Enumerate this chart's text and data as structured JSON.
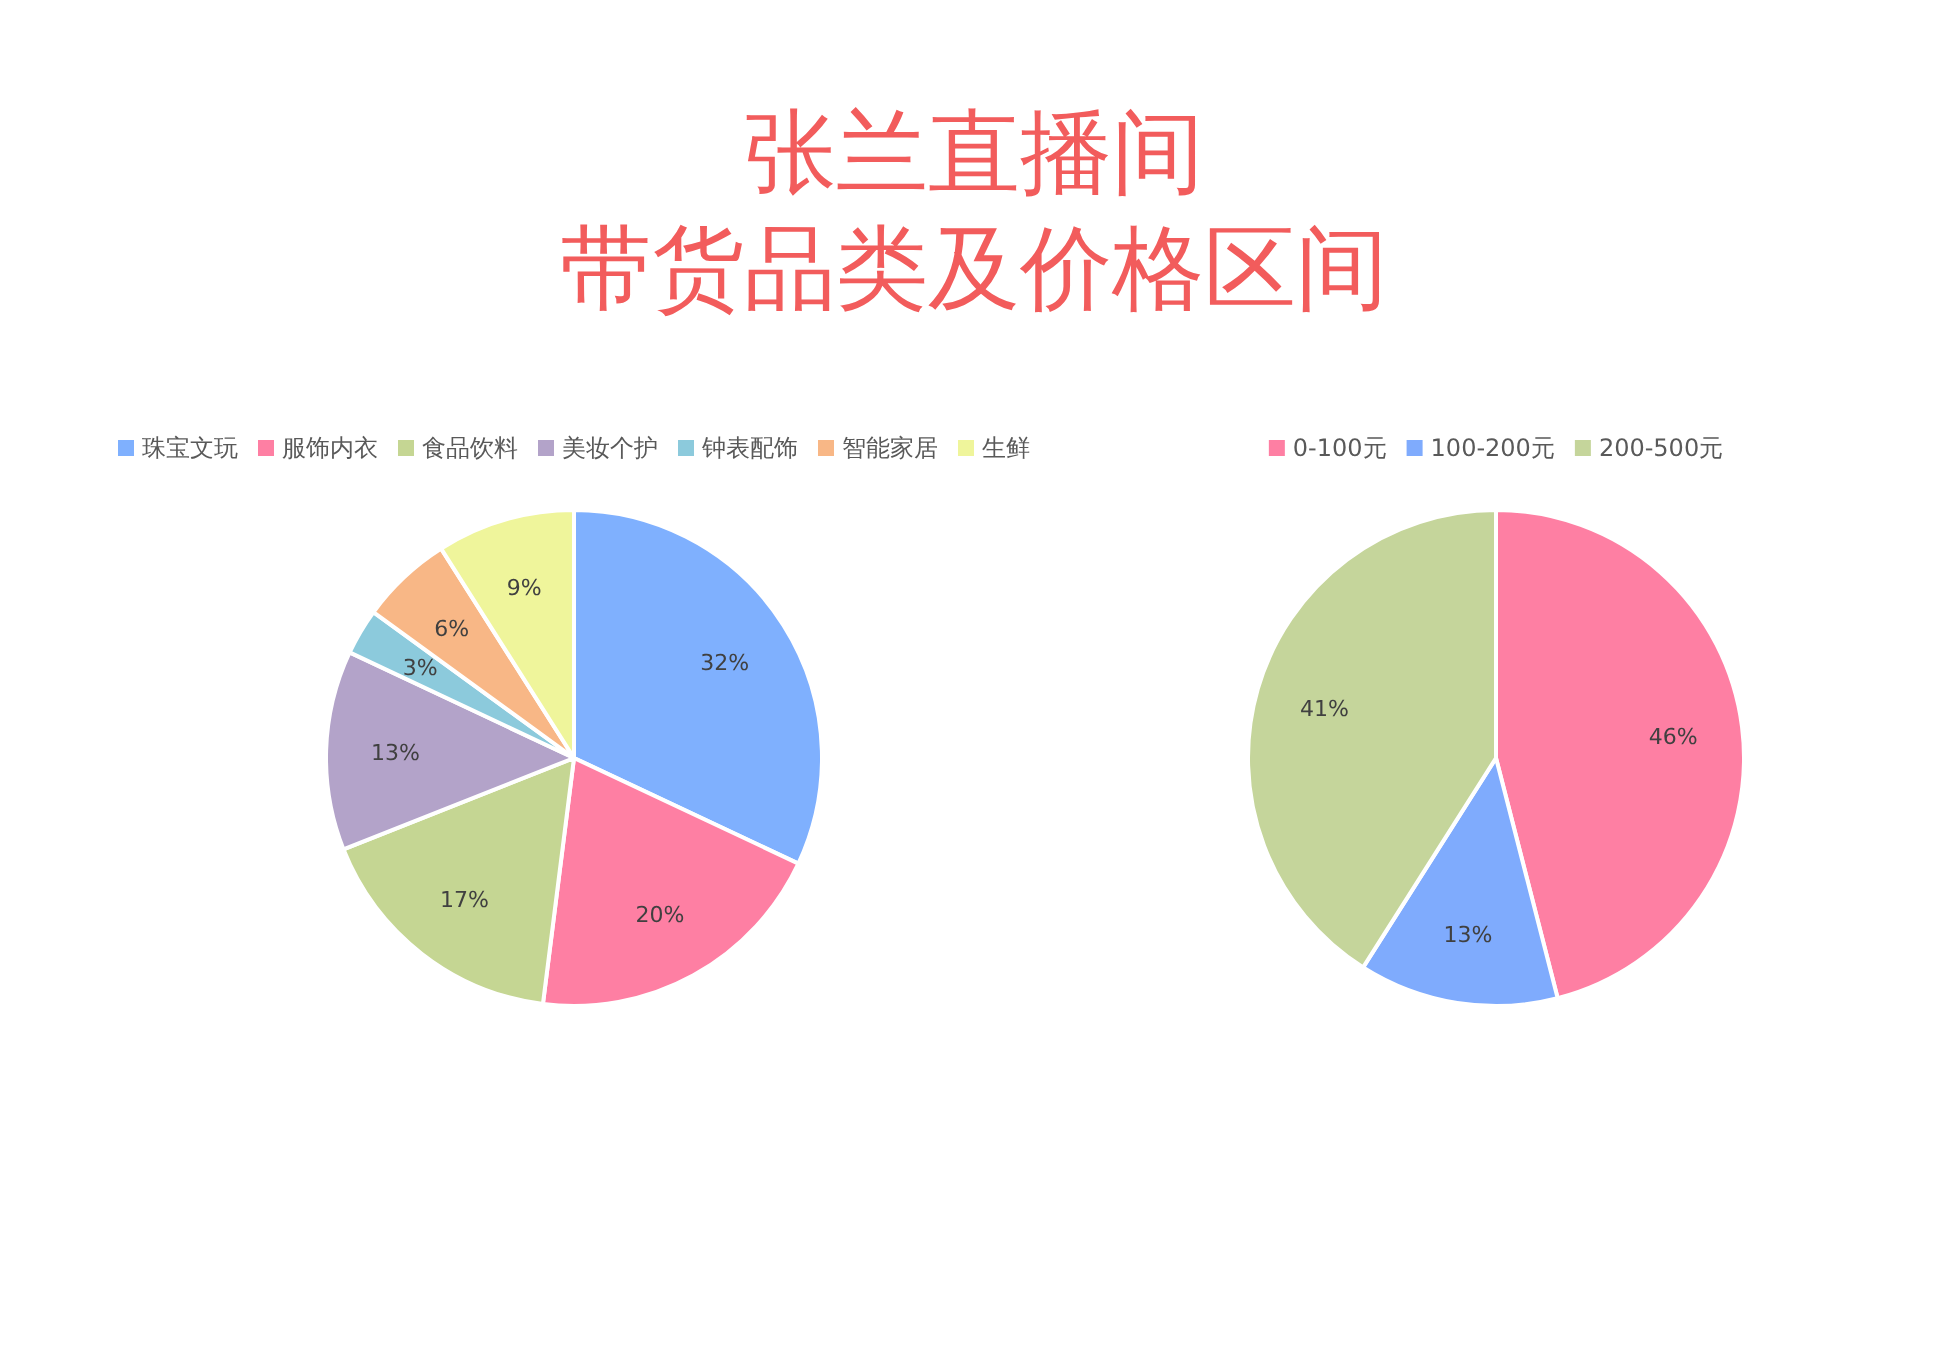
{
  "chart_data": [
    {
      "type": "pie",
      "title": "张兰直播间",
      "subtitle": "带货品类及价格区间",
      "categories": [
        "珠宝文玩",
        "服饰内衣",
        "食品饮料",
        "美妆个护",
        "钟表配饰",
        "智能家居",
        "生鲜"
      ],
      "values": [
        32,
        20,
        17,
        13,
        3,
        6,
        9
      ],
      "value_labels": [
        "32%",
        "20%",
        "17%",
        "13%",
        "3%",
        "6%",
        "9%"
      ],
      "colors": [
        "#7fb0fe",
        "#fe7fa3",
        "#c5d693",
        "#b3a3c9",
        "#8ccadc",
        "#f8b786",
        "#eff59b"
      ],
      "legend": "top"
    },
    {
      "type": "pie",
      "categories": [
        "0-100元",
        "100-200元",
        "200-500元"
      ],
      "values": [
        46,
        13,
        41
      ],
      "value_labels": [
        "46%",
        "13%",
        "41%"
      ],
      "colors": [
        "#fe7fa3",
        "#7fabfd",
        "#c5d59b"
      ],
      "legend": "top"
    }
  ]
}
